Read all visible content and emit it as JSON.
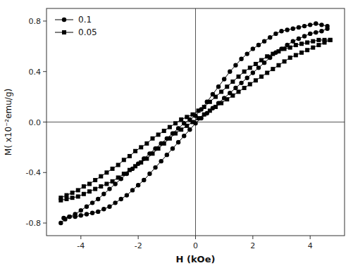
{
  "chart_data": {
    "type": "line",
    "x_label": "H (kOe)",
    "y_label": "M( x10⁻²emu/g)",
    "xlim": [
      -5.2,
      5.2
    ],
    "ylim": [
      -0.9,
      0.9
    ],
    "xticks": [
      -4,
      -2,
      0,
      2,
      4
    ],
    "yticks": [
      -0.8,
      -0.4,
      {
        "value": 0.0,
        "label": "0.0"
      },
      0.4,
      0.8
    ],
    "grid": false,
    "legend": "upper left",
    "series": [
      {
        "name": "0.1",
        "color": "#000000",
        "marker": "circle",
        "line_style": "solid",
        "x": [
          -4.7,
          -4.55,
          -4.4,
          -4.2,
          -4.0,
          -3.8,
          -3.6,
          -3.4,
          -3.2,
          -3.0,
          -2.8,
          -2.6,
          -2.4,
          -2.2,
          -2.0,
          -1.8,
          -1.6,
          -1.4,
          -1.2,
          -1.0,
          -0.8,
          -0.6,
          -0.4,
          -0.2,
          0.0,
          0.2,
          0.4,
          0.6,
          0.8,
          1.0,
          1.2,
          1.4,
          1.6,
          1.8,
          2.0,
          2.2,
          2.4,
          2.6,
          2.8,
          3.0,
          3.2,
          3.4,
          3.6,
          3.8,
          4.0,
          4.2,
          4.4,
          4.6
        ],
        "values": [
          -0.8,
          -0.77,
          -0.75,
          -0.73,
          -0.7,
          -0.67,
          -0.64,
          -0.61,
          -0.57,
          -0.53,
          -0.49,
          -0.45,
          -0.41,
          -0.37,
          -0.33,
          -0.29,
          -0.25,
          -0.21,
          -0.17,
          -0.13,
          -0.09,
          -0.05,
          -0.01,
          0.02,
          0.05,
          0.1,
          0.16,
          0.22,
          0.28,
          0.34,
          0.4,
          0.45,
          0.5,
          0.54,
          0.58,
          0.61,
          0.64,
          0.67,
          0.7,
          0.72,
          0.73,
          0.74,
          0.75,
          0.76,
          0.77,
          0.78,
          0.77,
          0.76
        ]
      },
      {
        "color": "#000000",
        "marker": "circle",
        "line_style": "solid",
        "x": [
          4.6,
          4.4,
          4.2,
          4.0,
          3.8,
          3.6,
          3.4,
          3.2,
          3.0,
          2.8,
          2.6,
          2.4,
          2.2,
          2.0,
          1.8,
          1.6,
          1.4,
          1.2,
          1.0,
          0.8,
          0.6,
          0.4,
          0.2,
          0.0,
          -0.2,
          -0.4,
          -0.6,
          -0.8,
          -1.0,
          -1.2,
          -1.4,
          -1.6,
          -1.8,
          -2.0,
          -2.2,
          -2.4,
          -2.6,
          -2.8,
          -3.0,
          -3.2,
          -3.4,
          -3.6,
          -3.8,
          -4.0,
          -4.2,
          -4.4,
          -4.6
        ],
        "values": [
          0.74,
          0.72,
          0.71,
          0.7,
          0.68,
          0.66,
          0.64,
          0.61,
          0.58,
          0.55,
          0.51,
          0.47,
          0.43,
          0.39,
          0.35,
          0.31,
          0.27,
          0.23,
          0.19,
          0.15,
          0.11,
          0.07,
          0.03,
          -0.01,
          -0.06,
          -0.11,
          -0.16,
          -0.21,
          -0.26,
          -0.31,
          -0.36,
          -0.41,
          -0.46,
          -0.5,
          -0.54,
          -0.58,
          -0.61,
          -0.64,
          -0.67,
          -0.69,
          -0.71,
          -0.72,
          -0.73,
          -0.74,
          -0.75,
          -0.75,
          -0.76
        ]
      },
      {
        "name": "0.05",
        "color": "#000000",
        "marker": "square",
        "line_style": "solid",
        "x": [
          -4.7,
          -4.5,
          -4.3,
          -4.1,
          -3.9,
          -3.7,
          -3.5,
          -3.3,
          -3.1,
          -2.9,
          -2.7,
          -2.5,
          -2.3,
          -2.1,
          -1.9,
          -1.7,
          -1.5,
          -1.3,
          -1.1,
          -0.9,
          -0.7,
          -0.5,
          -0.3,
          -0.1,
          0.1,
          0.3,
          0.5,
          0.7,
          0.9,
          1.1,
          1.3,
          1.5,
          1.7,
          1.9,
          2.1,
          2.3,
          2.5,
          2.7,
          2.9,
          3.1,
          3.3,
          3.5,
          3.7,
          3.9,
          4.1,
          4.3,
          4.5,
          4.7
        ],
        "values": [
          -0.6,
          -0.58,
          -0.56,
          -0.54,
          -0.51,
          -0.49,
          -0.46,
          -0.43,
          -0.4,
          -0.37,
          -0.34,
          -0.3,
          -0.27,
          -0.23,
          -0.2,
          -0.17,
          -0.13,
          -0.1,
          -0.07,
          -0.04,
          -0.01,
          0.02,
          0.04,
          0.06,
          0.09,
          0.12,
          0.16,
          0.2,
          0.24,
          0.28,
          0.32,
          0.36,
          0.4,
          0.43,
          0.46,
          0.49,
          0.52,
          0.54,
          0.56,
          0.58,
          0.59,
          0.61,
          0.62,
          0.63,
          0.64,
          0.65,
          0.65,
          0.65
        ]
      },
      {
        "color": "#000000",
        "marker": "square",
        "line_style": "solid",
        "x": [
          4.7,
          4.5,
          4.3,
          4.1,
          3.9,
          3.7,
          3.5,
          3.3,
          3.1,
          2.9,
          2.7,
          2.5,
          2.3,
          2.1,
          1.9,
          1.7,
          1.5,
          1.3,
          1.1,
          0.9,
          0.7,
          0.5,
          0.3,
          0.1,
          -0.1,
          -0.3,
          -0.5,
          -0.7,
          -0.9,
          -1.1,
          -1.3,
          -1.5,
          -1.7,
          -1.9,
          -2.1,
          -2.3,
          -2.5,
          -2.7,
          -2.9,
          -3.1,
          -3.3,
          -3.5,
          -3.7,
          -3.9,
          -4.1,
          -4.3,
          -4.5,
          -4.7
        ],
        "values": [
          0.65,
          0.63,
          0.61,
          0.59,
          0.57,
          0.55,
          0.53,
          0.51,
          0.48,
          0.45,
          0.42,
          0.39,
          0.36,
          0.33,
          0.3,
          0.27,
          0.24,
          0.21,
          0.18,
          0.15,
          0.12,
          0.09,
          0.06,
          0.03,
          0.0,
          -0.03,
          -0.06,
          -0.09,
          -0.13,
          -0.17,
          -0.21,
          -0.25,
          -0.29,
          -0.32,
          -0.35,
          -0.38,
          -0.41,
          -0.44,
          -0.47,
          -0.49,
          -0.51,
          -0.53,
          -0.55,
          -0.57,
          -0.59,
          -0.6,
          -0.61,
          -0.62
        ]
      }
    ]
  }
}
